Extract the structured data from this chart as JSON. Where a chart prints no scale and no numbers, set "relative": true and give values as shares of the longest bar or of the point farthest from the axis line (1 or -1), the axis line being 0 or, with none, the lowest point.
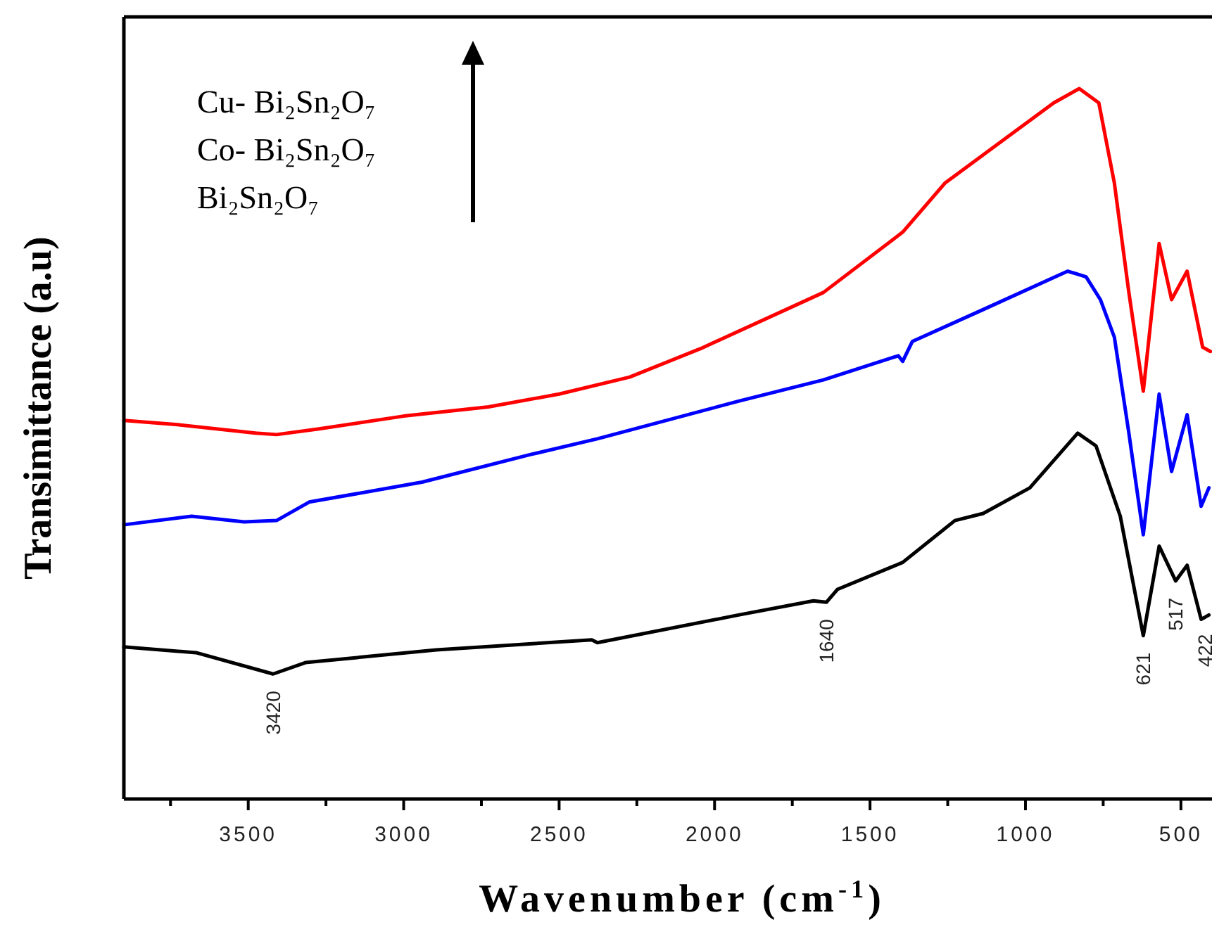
{
  "chart_data": {
    "type": "line",
    "xlabel": "Wavenumber (cm$^{-1}$)",
    "ylabel": "Transimittance (a.u)",
    "relative": true,
    "grid": false,
    "line_style": "solid",
    "xlim": [
      3900,
      400
    ],
    "xticks": [
      {
        "value": 3750,
        "label": null
      },
      3500,
      {
        "value": 3250,
        "label": null
      },
      3000,
      {
        "value": 2750,
        "label": null
      },
      2500,
      {
        "value": 2250,
        "label": null
      },
      2000,
      {
        "value": 1750,
        "label": null
      },
      1500,
      {
        "value": 1250,
        "label": null
      },
      1000,
      {
        "value": 750,
        "label": null
      },
      500
    ],
    "series": [
      {
        "color": "#ff0000",
        "x": [
          3900,
          3727,
          3477,
          3409,
          3272,
          3000,
          2727,
          2500,
          2273,
          2045,
          1650,
          1395,
          1259,
          1104,
          909,
          827,
          764,
          714,
          668,
          621,
          570,
          530,
          480,
          430,
          405
        ],
        "values": [
          0.533,
          0.527,
          0.515,
          0.513,
          0.521,
          0.539,
          0.552,
          0.57,
          0.594,
          0.634,
          0.713,
          0.798,
          0.867,
          0.917,
          0.98,
          1,
          0.98,
          0.867,
          0.715,
          0.574,
          0.782,
          0.703,
          0.743,
          0.636,
          0.63
        ]
      },
      {
        "color": "#0000ff",
        "x": [
          3900,
          3682,
          3513,
          3409,
          3304,
          2941,
          2591,
          2377,
          1923,
          1650,
          1409,
          1395,
          1364,
          1136,
          864,
          805,
          759,
          714,
          668,
          621,
          570,
          530,
          480,
          435,
          410
        ],
        "values": [
          0.386,
          0.398,
          0.39,
          0.392,
          0.418,
          0.446,
          0.485,
          0.507,
          0.56,
          0.59,
          0.624,
          0.616,
          0.644,
          0.689,
          0.743,
          0.735,
          0.703,
          0.65,
          0.517,
          0.372,
          0.57,
          0.461,
          0.541,
          0.412,
          0.438
        ]
      },
      {
        "color": "#000000",
        "x": [
          3900,
          3668,
          3420,
          3316,
          2895,
          2395,
          2377,
          1923,
          1682,
          1640,
          1605,
          1395,
          1227,
          1136,
          986,
          832,
          773,
          695,
          621,
          570,
          517,
          480,
          435,
          422,
          410
        ],
        "values": [
          0.214,
          0.206,
          0.176,
          0.192,
          0.21,
          0.224,
          0.22,
          0.259,
          0.279,
          0.277,
          0.295,
          0.333,
          0.392,
          0.402,
          0.438,
          0.515,
          0.497,
          0.398,
          0.23,
          0.356,
          0.307,
          0.329,
          0.253,
          0.256,
          0.259
        ]
      }
    ],
    "annotations": [
      "Cu- Bi₂Sn₂O₇",
      "Co- Bi₂Sn₂O₇",
      "Bi₂Sn₂O₇",
      {
        "text": "3420",
        "x": 3420,
        "y": 0.176
      },
      {
        "text": "1640",
        "x": 1640,
        "y": 0.277
      },
      {
        "text": "621",
        "x": 621,
        "y": 0.23
      },
      {
        "text": "517",
        "x": 517,
        "y": 0.307
      },
      {
        "text": "422",
        "x": 422,
        "y": 0.256
      }
    ]
  }
}
